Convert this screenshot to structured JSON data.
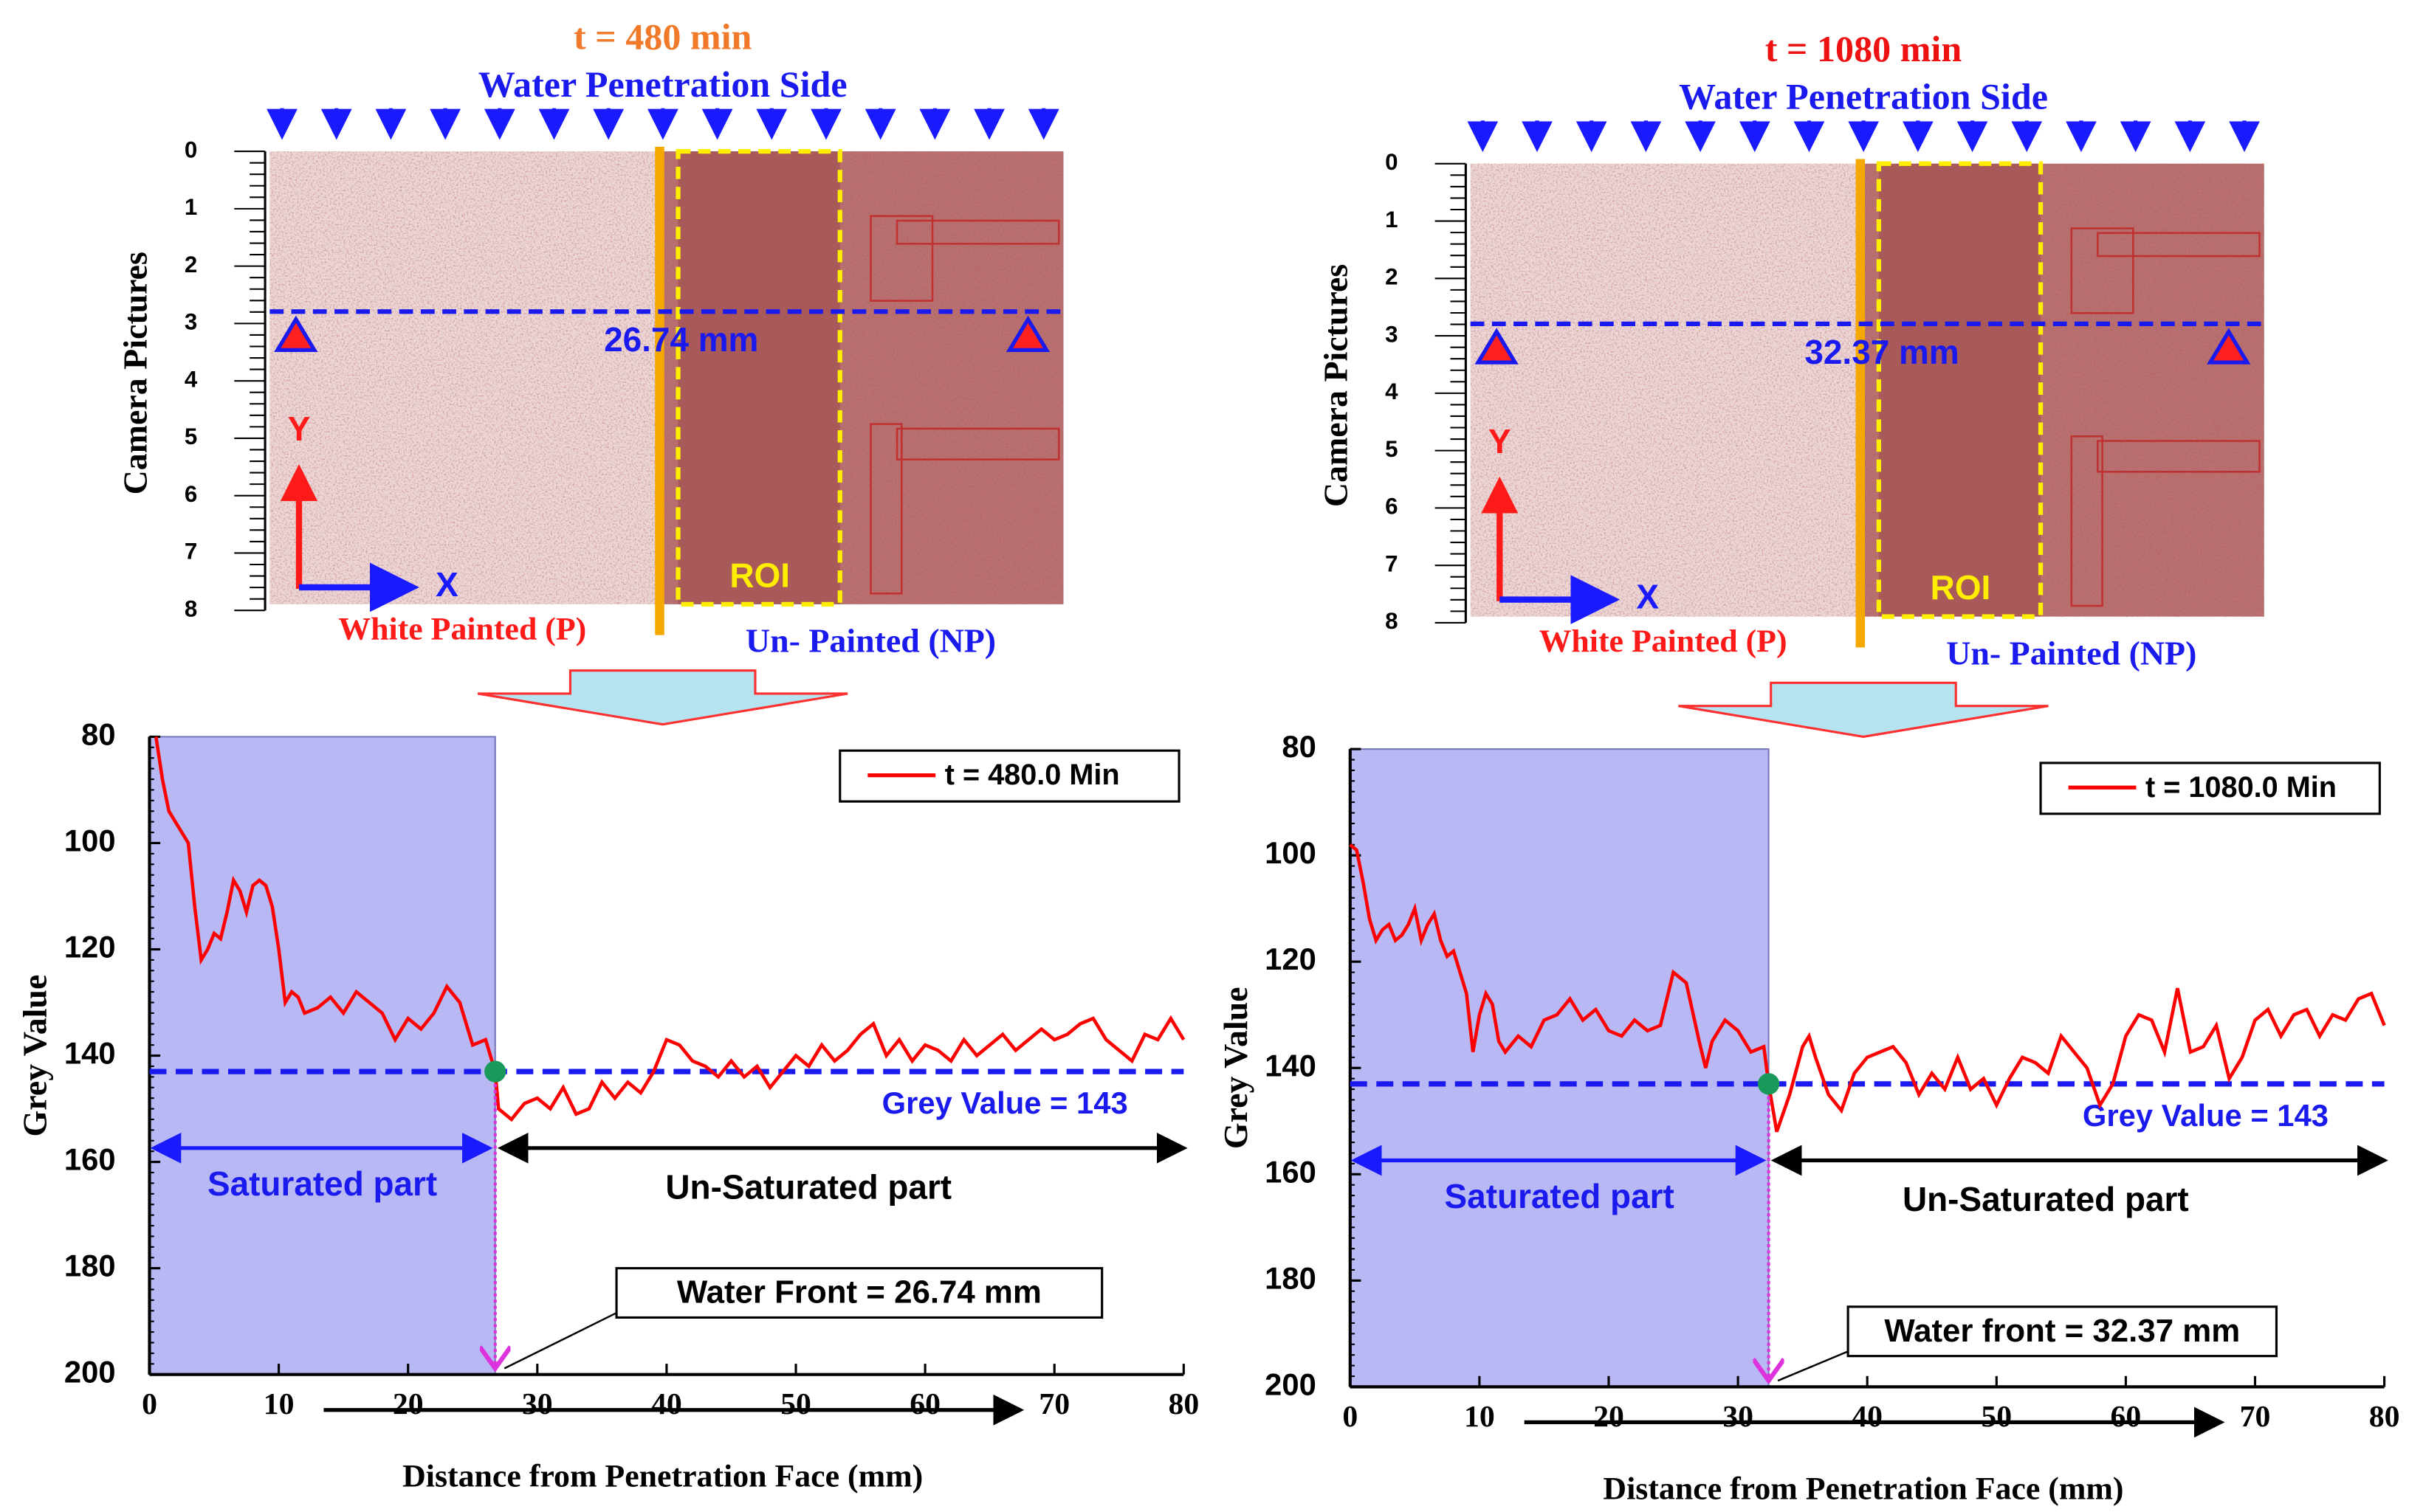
{
  "panels": [
    {
      "time_label": "t = 480 min",
      "side_label": "Water Penetration Side",
      "y_axis_label": "Camera Pictures",
      "ruler_ticks": [
        0,
        1,
        2,
        3,
        4,
        5,
        6,
        7,
        8
      ],
      "front_label": "26.74 mm",
      "y_arrow": "Y",
      "x_arrow": "X",
      "roi": "ROI",
      "painted": "White Painted (P)",
      "unpainted": "Un- Painted (NP)",
      "time_color": "#f07a2a"
    },
    {
      "time_label": "t = 1080 min",
      "side_label": "Water Penetration Side",
      "y_axis_label": "Camera Pictures",
      "ruler_ticks": [
        0,
        1,
        2,
        3,
        4,
        5,
        6,
        7,
        8
      ],
      "front_label": "32.37 mm",
      "y_arrow": "Y",
      "x_arrow": "X",
      "roi": "ROI",
      "painted": "White Painted (P)",
      "unpainted": "Un- Painted (NP)",
      "time_color": "#ee1111"
    }
  ],
  "chart_data": [
    {
      "type": "line",
      "x": [
        0.5,
        1,
        1.5,
        2,
        3,
        3.5,
        4,
        4.5,
        5,
        5.5,
        6,
        6.5,
        7,
        7.5,
        8,
        8.5,
        9,
        9.5,
        10,
        10.5,
        11,
        11.5,
        12,
        13,
        14,
        15,
        16,
        17,
        18,
        19,
        20,
        21,
        22,
        23,
        24,
        25,
        26,
        26.74,
        27,
        28,
        29,
        30,
        31,
        32,
        33,
        34,
        35,
        36,
        37,
        38,
        39,
        40,
        41,
        42,
        43,
        44,
        45,
        46,
        47,
        48,
        49,
        50,
        51,
        52,
        53,
        54,
        55,
        56,
        57,
        58,
        59,
        60,
        61,
        62,
        63,
        64,
        65,
        66,
        67,
        68,
        69,
        70,
        71,
        72,
        73,
        74,
        75,
        76,
        77,
        78,
        79,
        80
      ],
      "series": [
        {
          "name": "t = 480.0 Min",
          "color": "#ff0000",
          "values": [
            80,
            88,
            94,
            96,
            100,
            112,
            122,
            120,
            117,
            118,
            113,
            107,
            109,
            113,
            108,
            107,
            108,
            112,
            120,
            130,
            128,
            129,
            132,
            131,
            129,
            132,
            128,
            130,
            132,
            137,
            133,
            135,
            132,
            127,
            130,
            138,
            137,
            143,
            150,
            152,
            149,
            148,
            150,
            146,
            151,
            150,
            145,
            148,
            145,
            147,
            143,
            137,
            138,
            141,
            142,
            144,
            141,
            144,
            142,
            146,
            143,
            140,
            142,
            138,
            141,
            139,
            136,
            134,
            140,
            137,
            141,
            138,
            139,
            141,
            137,
            140,
            138,
            136,
            139,
            137,
            135,
            137,
            136,
            134,
            133,
            137,
            139,
            141,
            136,
            137,
            133,
            137
          ]
        }
      ],
      "xlabel": "Distance from Penetration Face (mm)",
      "ylabel": "Grey Value",
      "xlim": [
        0,
        80
      ],
      "ylim": [
        80,
        200
      ],
      "y_inverted": true,
      "xticks": [
        0,
        10,
        20,
        30,
        40,
        50,
        60,
        70,
        80
      ],
      "yticks": [
        80,
        100,
        120,
        140,
        160,
        180,
        200
      ],
      "threshold": {
        "value": 143,
        "label": "Grey Value = 143"
      },
      "water_front": {
        "value": 26.74,
        "label": "Water Front = 26.74 mm"
      },
      "saturated_label": "Saturated part",
      "unsaturated_label": "Un-Saturated part",
      "legend": "upper right"
    },
    {
      "type": "line",
      "x": [
        0,
        0.5,
        1,
        1.5,
        2,
        2.5,
        3,
        3.5,
        4,
        4.5,
        5,
        5.5,
        6,
        6.5,
        7,
        7.5,
        8,
        8.5,
        9,
        9.5,
        10,
        10.5,
        11,
        11.5,
        12,
        13,
        14,
        15,
        16,
        17,
        18,
        19,
        20,
        21,
        22,
        23,
        24,
        25,
        26,
        27,
        27.5,
        28,
        29,
        30,
        31,
        32,
        32.37,
        33,
        34,
        35,
        35.5,
        36,
        37,
        38,
        39,
        40,
        41,
        42,
        43,
        44,
        45,
        46,
        47,
        48,
        49,
        50,
        51,
        52,
        53,
        54,
        55,
        56,
        57,
        58,
        59,
        60,
        61,
        62,
        63,
        64,
        65,
        66,
        67,
        68,
        69,
        70,
        71,
        72,
        73,
        74,
        75,
        76,
        77,
        78,
        79,
        80
      ],
      "series": [
        {
          "name": "t = 1080.0 Min",
          "color": "#ff0000",
          "values": [
            98,
            99,
            105,
            112,
            116,
            114,
            113,
            116,
            115,
            113,
            110,
            116,
            113,
            111,
            116,
            119,
            118,
            122,
            126,
            137,
            130,
            126,
            128,
            135,
            137,
            134,
            136,
            131,
            130,
            127,
            131,
            129,
            133,
            134,
            131,
            133,
            132,
            122,
            124,
            135,
            140,
            135,
            131,
            133,
            137,
            136,
            143,
            152,
            145,
            136,
            134,
            138,
            145,
            148,
            141,
            138,
            137,
            136,
            139,
            145,
            141,
            144,
            138,
            144,
            142,
            147,
            142,
            138,
            139,
            141,
            134,
            137,
            140,
            147,
            143,
            134,
            130,
            131,
            137,
            125,
            137,
            136,
            132,
            142,
            138,
            131,
            129,
            134,
            130,
            129,
            134,
            130,
            131,
            127,
            126,
            132
          ]
        }
      ],
      "xlabel": "Distance from Penetration Face (mm)",
      "ylabel": "Grey Value",
      "xlim": [
        0,
        80
      ],
      "ylim": [
        80,
        200
      ],
      "y_inverted": true,
      "xticks": [
        0,
        10,
        20,
        30,
        40,
        50,
        60,
        70,
        80
      ],
      "yticks": [
        80,
        100,
        120,
        140,
        160,
        180,
        200
      ],
      "threshold": {
        "value": 143,
        "label": "Grey Value = 143"
      },
      "water_front": {
        "value": 32.37,
        "label": "Water front = 32.37 mm"
      },
      "saturated_label": "Saturated part",
      "unsaturated_label": "Un-Saturated part",
      "legend": "upper right"
    }
  ]
}
